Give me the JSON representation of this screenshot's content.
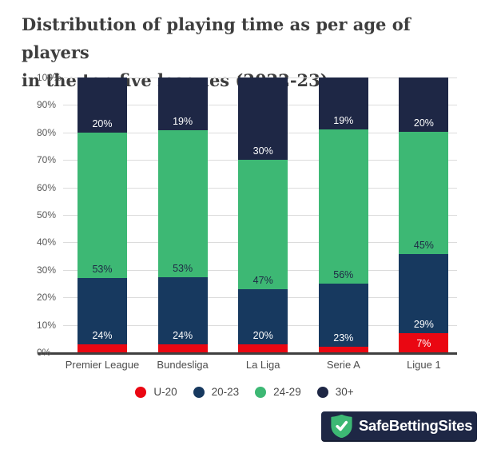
{
  "title": {
    "line1": "Distribution of playing time as per age of players",
    "line2": "in the top five leagues (2022-23)"
  },
  "chart_data": {
    "type": "bar",
    "subtype": "stacked-percent-column",
    "title": "Distribution of playing time as per age of players in the top five leagues (2022-23)",
    "categories": [
      "Premier League",
      "Bundesliga",
      "La Liga",
      "Serie A",
      "Ligue 1"
    ],
    "series": [
      {
        "name": "U-20",
        "color": "#ea0712",
        "label_color": "#ffffff",
        "values": [
          3,
          3,
          3,
          2,
          7
        ],
        "labels": [
          "",
          "",
          "",
          "",
          "7%"
        ]
      },
      {
        "name": "20-23",
        "color": "#17395f",
        "label_color": "#ffffff",
        "values": [
          24,
          24,
          20,
          23,
          29
        ],
        "labels": [
          "24%",
          "24%",
          "20%",
          "23%",
          "29%"
        ]
      },
      {
        "name": "24-29",
        "color": "#3db874",
        "label_color": "#1e2745",
        "values": [
          53,
          53,
          47,
          56,
          45
        ],
        "labels": [
          "53%",
          "53%",
          "47%",
          "56%",
          "45%"
        ]
      },
      {
        "name": "30+",
        "color": "#1e2745",
        "label_color": "#ffffff",
        "values": [
          20,
          19,
          30,
          19,
          20
        ],
        "labels": [
          "20%",
          "19%",
          "30%",
          "19%",
          "20%"
        ]
      }
    ],
    "y_ticks": [
      "0%",
      "10%",
      "20%",
      "30%",
      "40%",
      "50%",
      "60%",
      "70%",
      "80%",
      "90%",
      "100%"
    ],
    "ylim": [
      0,
      100
    ],
    "xlabel": "",
    "ylabel": "",
    "grid": true,
    "legend_position": "bottom"
  },
  "legend": {
    "items": [
      {
        "label": "U-20",
        "color": "#ea0712"
      },
      {
        "label": "20-23",
        "color": "#17395f"
      },
      {
        "label": "24-29",
        "color": "#3db874"
      },
      {
        "label": "30+",
        "color": "#1e2745"
      }
    ]
  },
  "branding": {
    "name": "SafeBettingSites",
    "bg_color": "#1e2745",
    "shield_color": "#3db874"
  },
  "colors": {
    "gridline": "#dcdcdc",
    "axis_line": "#3f3f3f",
    "title_text": "#3d3d3d",
    "tick_text": "#595959"
  }
}
